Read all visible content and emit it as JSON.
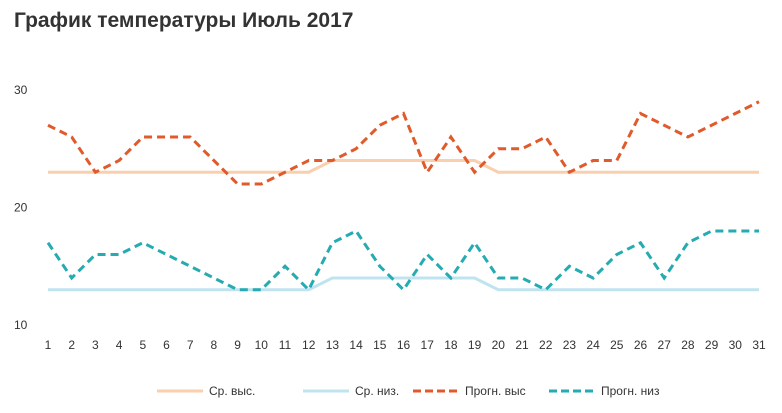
{
  "chart_data": {
    "type": "line",
    "title": "График температуры Июль 2017",
    "xlabel": "",
    "ylabel": "",
    "x": [
      1,
      2,
      3,
      4,
      5,
      6,
      7,
      8,
      9,
      10,
      11,
      12,
      13,
      14,
      15,
      16,
      17,
      18,
      19,
      20,
      21,
      22,
      23,
      24,
      25,
      26,
      27,
      28,
      29,
      30,
      31
    ],
    "yticks": [
      10,
      20,
      30
    ],
    "ylim": [
      10,
      30
    ],
    "grid": false,
    "legend": "bottom",
    "series": [
      {
        "name": "Ср. выс.",
        "style": "solid",
        "color": "#f9cfae",
        "values": [
          23,
          23,
          23,
          23,
          23,
          23,
          23,
          23,
          23,
          23,
          23,
          23,
          24,
          24,
          24,
          24,
          24,
          24,
          24,
          23,
          23,
          23,
          23,
          23,
          23,
          23,
          23,
          23,
          23,
          23,
          23
        ]
      },
      {
        "name": "Ср. низ.",
        "style": "solid",
        "color": "#bfe4ef",
        "values": [
          13,
          13,
          13,
          13,
          13,
          13,
          13,
          13,
          13,
          13,
          13,
          13,
          14,
          14,
          14,
          14,
          14,
          14,
          14,
          13,
          13,
          13,
          13,
          13,
          13,
          13,
          13,
          13,
          13,
          13,
          13
        ]
      },
      {
        "name": "Прогн. выс",
        "style": "dashed",
        "color": "#e05a2b",
        "values": [
          27,
          26,
          23,
          24,
          26,
          26,
          26,
          24,
          22,
          22,
          23,
          24,
          24,
          25,
          27,
          28,
          23,
          26,
          23,
          25,
          25,
          26,
          23,
          24,
          24,
          28,
          27,
          26,
          27,
          28,
          29
        ]
      },
      {
        "name": "Прогн. низ",
        "style": "dashed",
        "color": "#25abb1",
        "values": [
          17,
          14,
          16,
          16,
          17,
          16,
          15,
          14,
          13,
          13,
          15,
          13,
          17,
          18,
          15,
          13,
          16,
          14,
          17,
          14,
          14,
          13,
          15,
          14,
          16,
          17,
          14,
          17,
          18,
          18,
          18
        ]
      }
    ]
  }
}
